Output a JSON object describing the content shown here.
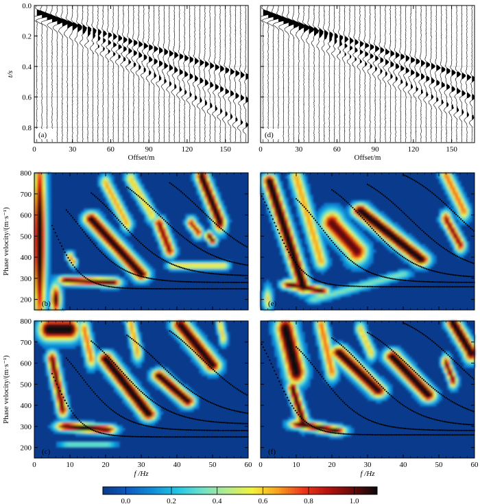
{
  "figure": {
    "colorbar": {
      "ticks": [
        "0.0",
        "0.2",
        "0.4",
        "0.6",
        "0.8",
        "1.0"
      ],
      "tick_values": [
        0.0,
        0.2,
        0.4,
        0.6,
        0.8,
        1.0
      ],
      "range": [
        -0.1,
        1.1
      ],
      "colors": [
        "#0a3a8c",
        "#0c5bc2",
        "#0e8fd8",
        "#22c6e6",
        "#6fe0c8",
        "#b6ec8a",
        "#f2f23a",
        "#f8a21c",
        "#ee3a1a",
        "#b8120e",
        "#6a0a0a",
        "#0a0a0a"
      ]
    }
  },
  "chart_data": [
    {
      "panel": "(a)",
      "type": "seismogram",
      "xlabel": "Offset/m",
      "ylabel": "t/s",
      "xlim": [
        0,
        168
      ],
      "ylim": [
        0.0,
        0.9
      ],
      "xticks": [
        0,
        30,
        60,
        90,
        120,
        150
      ],
      "yticks": [
        "0.0",
        "0.2",
        "0.4",
        "0.6",
        "0.8"
      ],
      "ytick_values": [
        0.0,
        0.2,
        0.4,
        0.6,
        0.8
      ],
      "trace_spacing": 4,
      "arrivals": [
        {
          "t0": 0.05,
          "slope": 0.0025,
          "amp": 1.0
        },
        {
          "t0": 0.05,
          "slope": 0.0035,
          "amp": 1.0
        },
        {
          "t0": 0.06,
          "slope": 0.0045,
          "amp": 0.9
        }
      ]
    },
    {
      "panel": "(d)",
      "type": "seismogram",
      "xlabel": "Offset/m",
      "xlim": [
        0,
        168
      ],
      "ylim": [
        0.0,
        0.9
      ],
      "xticks": [
        0,
        30,
        60,
        90,
        120,
        150
      ],
      "trace_spacing": 4,
      "arrivals": [
        {
          "t0": 0.05,
          "slope": 0.0026,
          "amp": 1.0
        },
        {
          "t0": 0.05,
          "slope": 0.0034,
          "amp": 1.0
        },
        {
          "t0": 0.06,
          "slope": 0.0042,
          "amp": 0.8
        }
      ]
    },
    {
      "panel": "(b)",
      "type": "heatmap",
      "ylabel": "Phase velocity/(m·s⁻¹)",
      "xlim": [
        0,
        60
      ],
      "ylim": [
        150,
        800
      ],
      "xticks": [
        0,
        10,
        20,
        30,
        40,
        50,
        60
      ],
      "yticks": [
        200,
        300,
        400,
        500,
        600,
        700,
        800
      ],
      "blobs": [
        {
          "x0": 1.5,
          "y0": 480,
          "x1": 1.5,
          "y1": 480,
          "sx": 1.2,
          "sy": 320,
          "a": 1.0
        },
        {
          "x0": 6,
          "y0": 200,
          "x1": 6,
          "y1": 200,
          "sx": 1.0,
          "sy": 50,
          "a": 0.9
        },
        {
          "x0": 9,
          "y0": 290,
          "x1": 22,
          "y1": 280,
          "sx": 1.6,
          "sy": 14,
          "a": 0.9
        },
        {
          "x0": 16,
          "y0": 580,
          "x1": 30,
          "y1": 320,
          "sx": 1.5,
          "sy": 22,
          "a": 0.95
        },
        {
          "x0": 20,
          "y0": 750,
          "x1": 26,
          "y1": 560,
          "sx": 1.0,
          "sy": 25,
          "a": 0.55
        },
        {
          "x0": 27,
          "y0": 770,
          "x1": 33,
          "y1": 600,
          "sx": 1.0,
          "sy": 25,
          "a": 0.5
        },
        {
          "x0": 35,
          "y0": 560,
          "x1": 38,
          "y1": 430,
          "sx": 1.1,
          "sy": 20,
          "a": 0.8
        },
        {
          "x0": 44,
          "y0": 560,
          "x1": 46,
          "y1": 520,
          "sx": 0.9,
          "sy": 20,
          "a": 0.75
        },
        {
          "x0": 49,
          "y0": 500,
          "x1": 50,
          "y1": 480,
          "sx": 0.8,
          "sy": 15,
          "a": 0.9
        },
        {
          "x0": 47,
          "y0": 780,
          "x1": 52,
          "y1": 570,
          "sx": 1.2,
          "sy": 35,
          "a": 0.95
        },
        {
          "x0": 39,
          "y0": 360,
          "x1": 53,
          "y1": 360,
          "sx": 1.2,
          "sy": 12,
          "a": 0.5
        },
        {
          "x0": 10,
          "y0": 400,
          "x1": 11,
          "y1": 380,
          "sx": 0.7,
          "sy": 18,
          "a": 0.6
        }
      ],
      "curves": [
        {
          "fmin": 5,
          "fmax": 60,
          "vinf": 250,
          "vamp": 600,
          "f0": 5,
          "df": 4
        },
        {
          "fmin": 9,
          "fmax": 60,
          "vinf": 280,
          "vamp": 520,
          "f0": 13,
          "df": 6
        },
        {
          "fmin": 16,
          "fmax": 60,
          "vinf": 310,
          "vamp": 520,
          "f0": 24,
          "df": 7
        },
        {
          "fmin": 26,
          "fmax": 60,
          "vinf": 340,
          "vamp": 520,
          "f0": 35,
          "df": 8
        },
        {
          "fmin": 38,
          "fmax": 60,
          "vinf": 360,
          "vamp": 520,
          "f0": 47,
          "df": 8
        }
      ]
    },
    {
      "panel": "(e)",
      "type": "heatmap",
      "xlim": [
        0,
        60
      ],
      "ylim": [
        150,
        800
      ],
      "xticks": [
        0,
        10,
        20,
        30,
        40,
        50,
        60
      ],
      "yticks": [
        200,
        300,
        400,
        500,
        600,
        700,
        800
      ],
      "blobs": [
        {
          "x0": 2.5,
          "y0": 760,
          "x1": 12,
          "y1": 260,
          "sx": 1.3,
          "sy": 22,
          "a": 1.0
        },
        {
          "x0": 8,
          "y0": 270,
          "x1": 17,
          "y1": 240,
          "sx": 1.5,
          "sy": 14,
          "a": 0.9
        },
        {
          "x0": 10,
          "y0": 780,
          "x1": 17,
          "y1": 380,
          "sx": 1.2,
          "sy": 24,
          "a": 0.55
        },
        {
          "x0": 20,
          "y0": 560,
          "x1": 27,
          "y1": 430,
          "sx": 2.0,
          "sy": 40,
          "a": 0.85
        },
        {
          "x0": 28,
          "y0": 620,
          "x1": 45,
          "y1": 390,
          "sx": 1.6,
          "sy": 22,
          "a": 1.0
        },
        {
          "x0": 52,
          "y0": 580,
          "x1": 56,
          "y1": 460,
          "sx": 1.0,
          "sy": 25,
          "a": 0.8
        },
        {
          "x0": 52,
          "y0": 790,
          "x1": 57,
          "y1": 620,
          "sx": 1.1,
          "sy": 30,
          "a": 0.6
        },
        {
          "x0": 15,
          "y0": 200,
          "x1": 40,
          "y1": 320,
          "sx": 1.5,
          "sy": 12,
          "a": 0.3
        },
        {
          "x0": 2,
          "y0": 200,
          "x1": 2,
          "y1": 200,
          "sx": 0.8,
          "sy": 40,
          "a": 0.5
        }
      ],
      "curves": [
        {
          "fmin": 0,
          "fmax": 60,
          "vinf": 260,
          "vamp": 600,
          "f0": 4,
          "df": 4
        },
        {
          "fmin": 10,
          "fmax": 60,
          "vinf": 280,
          "vamp": 520,
          "f0": 17,
          "df": 6
        },
        {
          "fmin": 20,
          "fmax": 60,
          "vinf": 300,
          "vamp": 520,
          "f0": 30,
          "df": 7
        },
        {
          "fmin": 30,
          "fmax": 60,
          "vinf": 320,
          "vamp": 520,
          "f0": 42,
          "df": 8
        },
        {
          "fmin": 40,
          "fmax": 60,
          "vinf": 340,
          "vamp": 520,
          "f0": 55,
          "df": 8
        }
      ]
    },
    {
      "panel": "(c)",
      "type": "heatmap",
      "xlabel": "f /Hz",
      "ylabel": "Phase velocity/(m·s⁻¹)",
      "xlim": [
        0,
        60
      ],
      "ylim": [
        150,
        800
      ],
      "xticks": [
        0,
        10,
        20,
        30,
        40,
        50,
        60
      ],
      "yticks": [
        200,
        300,
        400,
        500,
        600,
        700,
        800
      ],
      "blobs": [
        {
          "x0": 4,
          "y0": 760,
          "x1": 10,
          "y1": 760,
          "sx": 1.8,
          "sy": 35,
          "a": 1.0
        },
        {
          "x0": 5,
          "y0": 620,
          "x1": 8,
          "y1": 380,
          "sx": 1.0,
          "sy": 25,
          "a": 0.85
        },
        {
          "x0": 9,
          "y0": 300,
          "x1": 20,
          "y1": 285,
          "sx": 2.0,
          "sy": 14,
          "a": 1.0
        },
        {
          "x0": 14,
          "y0": 760,
          "x1": 16,
          "y1": 620,
          "sx": 1.0,
          "sy": 30,
          "a": 0.6
        },
        {
          "x0": 20,
          "y0": 620,
          "x1": 32,
          "y1": 360,
          "sx": 1.5,
          "sy": 22,
          "a": 1.0
        },
        {
          "x0": 27,
          "y0": 790,
          "x1": 29,
          "y1": 650,
          "sx": 0.9,
          "sy": 30,
          "a": 0.55
        },
        {
          "x0": 35,
          "y0": 540,
          "x1": 43,
          "y1": 420,
          "sx": 1.4,
          "sy": 20,
          "a": 0.95
        },
        {
          "x0": 41,
          "y0": 780,
          "x1": 50,
          "y1": 590,
          "sx": 1.6,
          "sy": 24,
          "a": 0.95
        },
        {
          "x0": 52,
          "y0": 790,
          "x1": 53,
          "y1": 720,
          "sx": 0.7,
          "sy": 25,
          "a": 0.5
        },
        {
          "x0": 10,
          "y0": 215,
          "x1": 20,
          "y1": 215,
          "sx": 2.0,
          "sy": 8,
          "a": 0.35
        }
      ],
      "curves": [
        {
          "fmin": 5,
          "fmax": 60,
          "vinf": 250,
          "vamp": 600,
          "f0": 5,
          "df": 4
        },
        {
          "fmin": 9,
          "fmax": 60,
          "vinf": 280,
          "vamp": 520,
          "f0": 13,
          "df": 6
        },
        {
          "fmin": 16,
          "fmax": 60,
          "vinf": 310,
          "vamp": 520,
          "f0": 24,
          "df": 7
        },
        {
          "fmin": 26,
          "fmax": 60,
          "vinf": 340,
          "vamp": 520,
          "f0": 35,
          "df": 8
        },
        {
          "fmin": 38,
          "fmax": 60,
          "vinf": 360,
          "vamp": 520,
          "f0": 47,
          "df": 8
        }
      ]
    },
    {
      "panel": "(f)",
      "type": "heatmap",
      "xlabel": "f /Hz",
      "xlim": [
        0,
        60
      ],
      "ylim": [
        150,
        800
      ],
      "xticks": [
        0,
        10,
        20,
        30,
        40,
        50,
        60
      ],
      "yticks": [
        200,
        300,
        400,
        500,
        600,
        700,
        800
      ],
      "blobs": [
        {
          "x0": 7,
          "y0": 760,
          "x1": 10,
          "y1": 560,
          "sx": 1.8,
          "sy": 40,
          "a": 1.0
        },
        {
          "x0": 9,
          "y0": 480,
          "x1": 12,
          "y1": 320,
          "sx": 1.0,
          "sy": 24,
          "a": 0.9
        },
        {
          "x0": 11,
          "y0": 310,
          "x1": 21,
          "y1": 280,
          "sx": 2.0,
          "sy": 14,
          "a": 0.95
        },
        {
          "x0": 17,
          "y0": 780,
          "x1": 20,
          "y1": 560,
          "sx": 1.1,
          "sy": 30,
          "a": 0.6
        },
        {
          "x0": 22,
          "y0": 650,
          "x1": 33,
          "y1": 470,
          "sx": 1.6,
          "sy": 22,
          "a": 0.95
        },
        {
          "x0": 28,
          "y0": 760,
          "x1": 31,
          "y1": 650,
          "sx": 0.9,
          "sy": 25,
          "a": 0.5
        },
        {
          "x0": 37,
          "y0": 630,
          "x1": 47,
          "y1": 450,
          "sx": 1.5,
          "sy": 22,
          "a": 1.0
        },
        {
          "x0": 52,
          "y0": 600,
          "x1": 54,
          "y1": 520,
          "sx": 0.8,
          "sy": 25,
          "a": 0.85
        },
        {
          "x0": 54,
          "y0": 790,
          "x1": 59,
          "y1": 650,
          "sx": 1.3,
          "sy": 30,
          "a": 1.0
        }
      ],
      "curves": [
        {
          "fmin": 0,
          "fmax": 60,
          "vinf": 260,
          "vamp": 600,
          "f0": 4,
          "df": 4
        },
        {
          "fmin": 10,
          "fmax": 60,
          "vinf": 280,
          "vamp": 520,
          "f0": 17,
          "df": 6
        },
        {
          "fmin": 20,
          "fmax": 60,
          "vinf": 300,
          "vamp": 520,
          "f0": 30,
          "df": 7
        },
        {
          "fmin": 30,
          "fmax": 60,
          "vinf": 320,
          "vamp": 520,
          "f0": 42,
          "df": 8
        },
        {
          "fmin": 40,
          "fmax": 60,
          "vinf": 340,
          "vamp": 520,
          "f0": 55,
          "df": 8
        }
      ]
    }
  ]
}
